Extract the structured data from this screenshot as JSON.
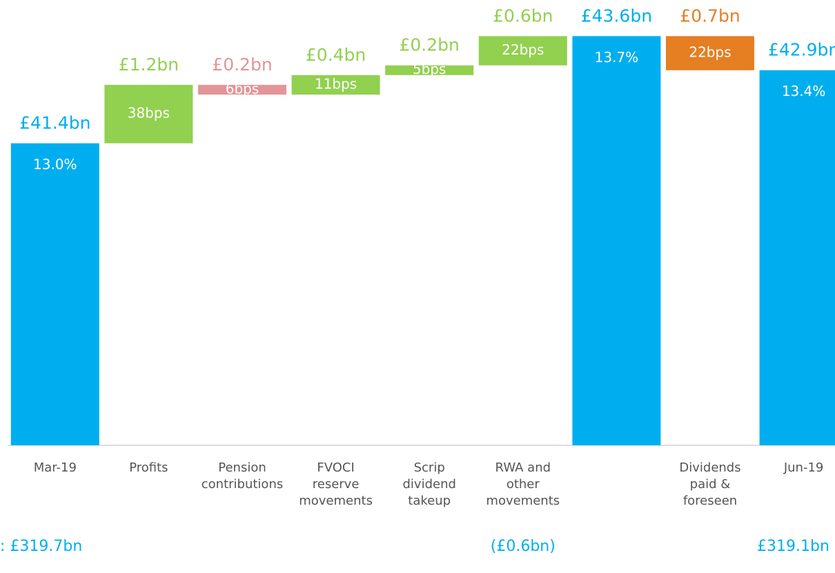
{
  "chart_data": {
    "type": "waterfall",
    "categories": [
      "Mar-19",
      "Profits",
      "Pension contributions",
      "FVOCI reserve movements",
      "Scrip dividend takeup",
      "RWA and other movements",
      null,
      "Dividends paid & foreseen",
      "Jun-19"
    ],
    "kinds": [
      "total",
      "step",
      "step",
      "step",
      "step",
      "step",
      "total",
      "step",
      "total"
    ],
    "values": [
      41.4,
      1.2,
      -0.2,
      0.4,
      0.2,
      0.6,
      43.6,
      -0.7,
      42.9
    ],
    "value_labels": [
      "£41.4bn",
      "£1.2bn",
      "£0.2bn",
      "£0.4bn",
      "£0.2bn",
      "£0.6bn",
      "£43.6bn",
      "£0.7bn",
      "£42.9bn"
    ],
    "ratio_labels": [
      "13.0%",
      "38bps",
      "6bps",
      "11bps",
      "5bps",
      "22bps",
      "13.7%",
      "22bps",
      "13.4%"
    ],
    "colors": [
      "#00aeef",
      "#92d050",
      "#e39597",
      "#92d050",
      "#92d050",
      "#92d050",
      "#00aeef",
      "#e67e22",
      "#00aeef"
    ],
    "ylim": [
      35.2,
      44.2
    ],
    "rwa_labels": [
      ": £319.7bn",
      "(£0.6bn)",
      "£319.1bn"
    ]
  }
}
